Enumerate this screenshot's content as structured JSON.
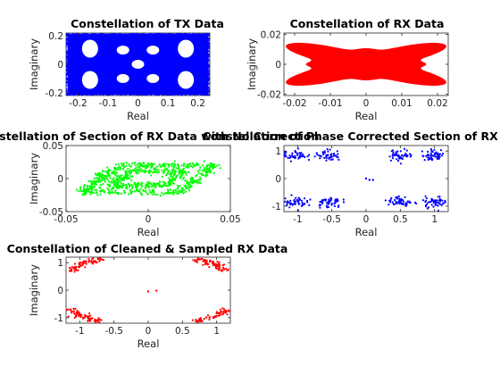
{
  "chart_data": [
    {
      "type": "scatter",
      "title": "Constellation of TX Data",
      "xlabel": "Real",
      "ylabel": "Imaginary",
      "xlim": [
        -0.24,
        0.24
      ],
      "ylim": [
        -0.22,
        0.22
      ],
      "xticks": [
        -0.2,
        -0.1,
        0,
        0.1,
        0.2
      ],
      "xtick_labels": [
        "-0.2",
        "-0.1",
        "0",
        "0.1",
        "0.2"
      ],
      "yticks": [
        -0.2,
        0,
        0.2
      ],
      "ytick_labels": [
        "-0.2",
        "0",
        "0.2"
      ],
      "color": "#0000ff",
      "shape": "dense-cloud",
      "holes": [
        [
          -0.16,
          0.11
        ],
        [
          0.16,
          0.11
        ],
        [
          -0.16,
          -0.11
        ],
        [
          0.16,
          -0.11
        ],
        [
          -0.05,
          0.1
        ],
        [
          0.05,
          0.1
        ],
        [
          -0.05,
          -0.1
        ],
        [
          0.05,
          -0.1
        ],
        [
          0,
          0
        ]
      ]
    },
    {
      "type": "area",
      "title": "Constellation of RX Data",
      "xlabel": "Real",
      "ylabel": "Imaginary",
      "xlim": [
        -0.023,
        0.023
      ],
      "ylim": [
        -0.021,
        0.021
      ],
      "xticks": [
        -0.02,
        -0.01,
        0,
        0.01,
        0.02
      ],
      "xtick_labels": [
        "-0.02",
        "-0.01",
        "0",
        "0.01",
        "0.02"
      ],
      "yticks": [
        -0.02,
        0,
        0.02
      ],
      "ytick_labels": [
        "-0.02",
        "0",
        "0.02"
      ],
      "color": "#ff0000",
      "shape": "filled-rotated-cross"
    },
    {
      "type": "scatter",
      "title": "Constellation of Section of RX Data with No Correction",
      "xlabel": "Real",
      "ylabel": "Imaginary",
      "xlim": [
        -0.05,
        0.05
      ],
      "ylim": [
        -0.05,
        0.05
      ],
      "xticks": [
        -0.05,
        0,
        0.05
      ],
      "xtick_labels": [
        "-0.05",
        "0",
        "0.05"
      ],
      "yticks": [
        -0.05,
        0,
        0.05
      ],
      "ytick_labels": [
        "-0.05",
        "0",
        "0.05"
      ],
      "color": "#00ff00",
      "shape": "sheared-ring"
    },
    {
      "type": "scatter",
      "title": "Constellation of Phase Corrected Section of RX Data",
      "xlabel": "Real",
      "ylabel": "",
      "xlim": [
        -1.2,
        1.2
      ],
      "ylim": [
        -1.2,
        1.2
      ],
      "xticks": [
        -1,
        -0.5,
        0,
        0.5,
        1
      ],
      "xtick_labels": [
        "-1",
        "-0.5",
        "0",
        "0.5",
        "1"
      ],
      "yticks": [
        -1,
        0,
        1
      ],
      "ytick_labels": [
        "-1",
        "0",
        "1"
      ],
      "color": "#0000ff",
      "clusters": [
        [
          -1.05,
          0.85
        ],
        [
          -0.55,
          0.85
        ],
        [
          0.5,
          0.85
        ],
        [
          1.0,
          0.85
        ],
        [
          -1.05,
          -0.85
        ],
        [
          -0.55,
          -0.85
        ],
        [
          0.5,
          -0.85
        ],
        [
          1.0,
          -0.85
        ]
      ],
      "center_points": [
        [
          0.0,
          0.0
        ],
        [
          0.05,
          -0.05
        ],
        [
          0.1,
          -0.05
        ]
      ]
    },
    {
      "type": "scatter",
      "title": "Constellation of Cleaned & Sampled RX Data",
      "xlabel": "Real",
      "ylabel": "Imaginary",
      "xlim": [
        -1.2,
        1.2
      ],
      "ylim": [
        -1.2,
        1.2
      ],
      "xticks": [
        -1,
        -0.5,
        0,
        0.5,
        1
      ],
      "xtick_labels": [
        "-1",
        "-0.5",
        "0",
        "0.5",
        "1"
      ],
      "yticks": [
        -1,
        0,
        1
      ],
      "ytick_labels": [
        "-1",
        "0",
        "1"
      ],
      "color": "#ff0000",
      "arcs": [
        [
          -0.95,
          0.95
        ],
        [
          0.95,
          0.95
        ],
        [
          -0.95,
          -0.95
        ],
        [
          0.95,
          -0.95
        ]
      ],
      "center_points": [
        [
          0.0,
          -0.05
        ],
        [
          0.12,
          -0.02
        ]
      ]
    }
  ]
}
